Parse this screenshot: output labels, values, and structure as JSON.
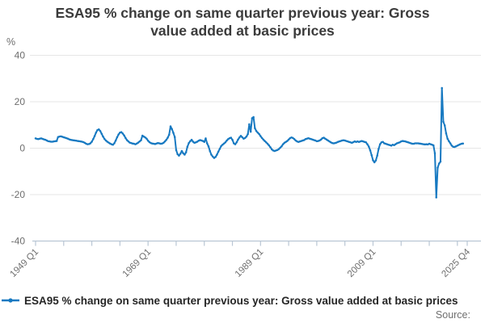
{
  "header": {
    "title_line1": "ESA95 % change on same quarter previous year: Gross",
    "title_line2": "value added at basic prices"
  },
  "y_axis": {
    "unit": "%",
    "ticks": [
      40,
      20,
      0,
      -20,
      -40
    ]
  },
  "x_axis": {
    "minor_tick_quarters": [
      0,
      20,
      40,
      60,
      80,
      100,
      120,
      140,
      160,
      180,
      200,
      220,
      240,
      260,
      280,
      300,
      307
    ],
    "tick_labels": [
      {
        "label": "1949 Q1",
        "quarter_index": 0
      },
      {
        "label": "1969 Q1",
        "quarter_index": 80
      },
      {
        "label": "1989 Q1",
        "quarter_index": 160
      },
      {
        "label": "2009 Q1",
        "quarter_index": 240
      },
      {
        "label": "2025 Q4",
        "quarter_index": 307
      }
    ]
  },
  "legend": {
    "label": "ESA95 % change on same quarter previous year: Gross value added at basic prices"
  },
  "footer": {
    "source_label": "Source:"
  },
  "chart_data": {
    "type": "line",
    "title": "ESA95 % change on same quarter previous year: Gross value added at basic prices",
    "frequency": "quarterly",
    "x_start": "1949 Q1",
    "x_axis_end": "2025 Q4",
    "data_end": "2025 Q1",
    "ylabel": "%",
    "ylim": [
      -40,
      40
    ],
    "grid": "horizontal",
    "legend_position": "bottom-left",
    "line_color": "#1779c1",
    "grid_color": "#e6e6e6",
    "axis_color": "#b9c6d4",
    "tick_text_color": "#6e6e6e",
    "values": [
      4.2,
      4.0,
      3.9,
      4.1,
      4.2,
      4.0,
      3.8,
      3.6,
      3.3,
      3.0,
      2.9,
      2.8,
      2.8,
      2.9,
      3.0,
      3.1,
      4.8,
      5.0,
      5.1,
      4.9,
      4.7,
      4.5,
      4.3,
      4.1,
      3.8,
      3.6,
      3.5,
      3.4,
      3.3,
      3.2,
      3.1,
      3.0,
      2.9,
      2.8,
      2.6,
      2.3,
      1.9,
      1.7,
      1.8,
      2.1,
      2.8,
      3.9,
      5.2,
      6.7,
      7.8,
      8.1,
      7.4,
      6.2,
      5.0,
      4.0,
      3.3,
      2.8,
      2.4,
      2.0,
      1.7,
      1.5,
      2.1,
      3.3,
      4.7,
      5.9,
      6.7,
      6.9,
      6.3,
      5.5,
      4.4,
      3.5,
      2.9,
      2.4,
      2.2,
      2.0,
      1.9,
      1.7,
      2.0,
      2.4,
      2.9,
      3.4,
      5.4,
      5.0,
      4.6,
      4.1,
      3.2,
      2.6,
      2.2,
      2.0,
      1.9,
      1.8,
      2.0,
      2.2,
      2.1,
      1.9,
      2.0,
      2.3,
      2.9,
      3.6,
      4.5,
      5.8,
      9.4,
      8.2,
      6.6,
      4.8,
      -0.8,
      -2.6,
      -3.2,
      -2.4,
      -1.2,
      -2.2,
      -2.8,
      -1.8,
      0.6,
      2.2,
      3.0,
      3.6,
      2.8,
      2.3,
      2.5,
      2.8,
      3.2,
      3.5,
      3.3,
      3.1,
      2.7,
      4.2,
      2.1,
      0.8,
      -1.2,
      -2.8,
      -3.6,
      -4.2,
      -3.8,
      -2.8,
      -1.5,
      -0.3,
      0.9,
      1.5,
      2.0,
      2.5,
      3.3,
      3.9,
      4.3,
      4.5,
      3.6,
      2.1,
      1.7,
      2.5,
      3.7,
      4.6,
      5.3,
      4.7,
      4.1,
      4.4,
      5.0,
      6.1,
      10.3,
      7.1,
      12.9,
      13.4,
      8.6,
      7.4,
      6.7,
      6.1,
      5.2,
      4.4,
      3.7,
      3.1,
      2.5,
      1.9,
      1.2,
      0.4,
      -0.5,
      -1.0,
      -1.2,
      -1.0,
      -0.8,
      -0.4,
      0.2,
      0.8,
      1.7,
      2.3,
      2.7,
      3.1,
      3.7,
      4.3,
      4.6,
      4.4,
      3.9,
      3.3,
      2.9,
      2.7,
      2.9,
      3.1,
      3.3,
      3.5,
      3.9,
      4.1,
      4.3,
      4.1,
      3.9,
      3.7,
      3.5,
      3.3,
      3.0,
      3.1,
      3.3,
      3.7,
      4.3,
      4.5,
      4.1,
      3.7,
      3.3,
      2.9,
      2.5,
      2.2,
      2.1,
      2.2,
      2.4,
      2.7,
      2.9,
      3.1,
      3.3,
      3.4,
      3.3,
      3.1,
      2.9,
      2.7,
      2.5,
      2.3,
      2.6,
      2.9,
      2.7,
      2.9,
      2.7,
      2.9,
      3.1,
      2.9,
      2.7,
      2.5,
      1.7,
      0.7,
      -0.9,
      -3.0,
      -5.2,
      -6.1,
      -5.3,
      -3.2,
      -0.3,
      1.7,
      2.5,
      2.7,
      2.1,
      1.9,
      1.7,
      1.5,
      1.3,
      1.1,
      1.5,
      1.3,
      1.7,
      2.1,
      2.3,
      2.5,
      2.9,
      3.1,
      3.0,
      2.9,
      2.7,
      2.5,
      2.3,
      2.1,
      1.9,
      1.9,
      2.1,
      2.1,
      2.1,
      2.0,
      1.9,
      1.8,
      1.7,
      1.6,
      1.7,
      1.6,
      1.9,
      1.7,
      1.5,
      1.2,
      -2.2,
      -21.2,
      -8.4,
      -6.6,
      -5.8,
      25.9,
      11.4,
      9.8,
      6.4,
      4.1,
      3.0,
      2.1,
      1.1,
      0.6,
      0.5,
      0.8,
      1.1,
      1.4,
      1.7,
      1.9,
      2.0
    ]
  }
}
